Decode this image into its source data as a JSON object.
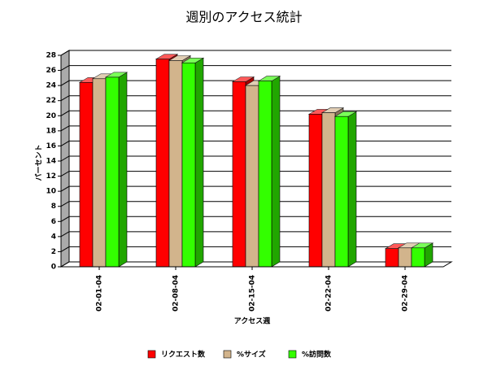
{
  "chart_data": {
    "type": "bar3d",
    "title": "週別のアクセス統計",
    "y_label": "パーセント",
    "x_label": "アクセス週",
    "categories": [
      "02-01-04",
      "02-08-04",
      "02-15-04",
      "02-22-04",
      "02-29-04"
    ],
    "series": [
      {
        "name": "リクエスト数",
        "color": "#ff0000",
        "values": [
          24.4,
          27.5,
          24.5,
          20.2,
          2.4
        ]
      },
      {
        "name": "%サイズ",
        "color": "#d2b48c",
        "values": [
          24.9,
          27.3,
          24.0,
          20.4,
          2.5
        ]
      },
      {
        "name": "%訪問数",
        "color": "#33ff00",
        "values": [
          25.1,
          27.0,
          24.6,
          19.9,
          2.5
        ]
      }
    ],
    "ylim": [
      0,
      28
    ],
    "yticks": [
      0,
      2,
      4,
      6,
      8,
      10,
      12,
      14,
      16,
      18,
      20,
      22,
      24,
      26,
      28
    ],
    "grid": true
  }
}
